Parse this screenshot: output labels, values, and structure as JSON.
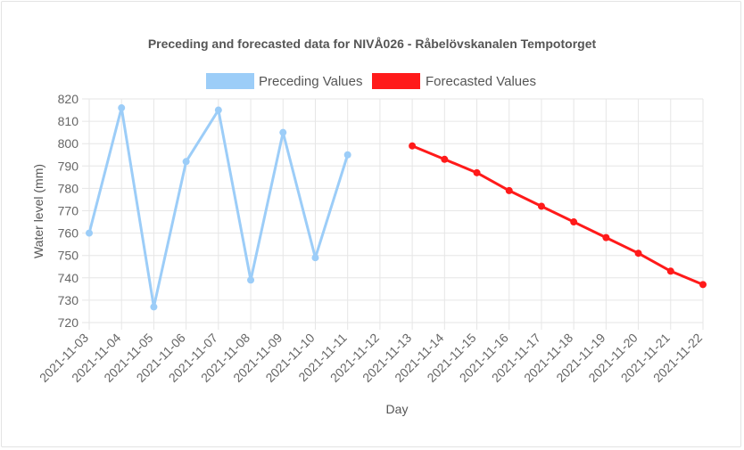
{
  "chart_data": {
    "type": "line",
    "title": "Preceding and forecasted data for NIVÅ026 - Råbelövskanalen Tempotorget",
    "xlabel": "Day",
    "ylabel": "Water level (mm)",
    "ylim": [
      720,
      820
    ],
    "y_ticks": [
      "820",
      "810",
      "800",
      "790",
      "780",
      "770",
      "760",
      "750",
      "740",
      "730",
      "720"
    ],
    "categories": [
      "2021-11-03",
      "2021-11-04",
      "2021-11-05",
      "2021-11-06",
      "2021-11-07",
      "2021-11-08",
      "2021-11-09",
      "2021-11-10",
      "2021-11-11",
      "2021-11-12",
      "2021-11-13",
      "2021-11-14",
      "2021-11-15",
      "2021-11-16",
      "2021-11-17",
      "2021-11-18",
      "2021-11-19",
      "2021-11-20",
      "2021-11-21",
      "2021-11-22"
    ],
    "grid": true,
    "legend_position": "top",
    "series": [
      {
        "name": "Preceding Values",
        "color": "#9ccdf8",
        "values": [
          760,
          816,
          727,
          792,
          815,
          739,
          805,
          749,
          795,
          null,
          null,
          null,
          null,
          null,
          null,
          null,
          null,
          null,
          null,
          null
        ]
      },
      {
        "name": "Forecasted Values",
        "color": "#ff1a1a",
        "values": [
          null,
          null,
          null,
          null,
          null,
          null,
          null,
          null,
          null,
          null,
          799,
          793,
          787,
          779,
          772,
          765,
          758,
          751,
          743,
          737
        ]
      }
    ]
  }
}
